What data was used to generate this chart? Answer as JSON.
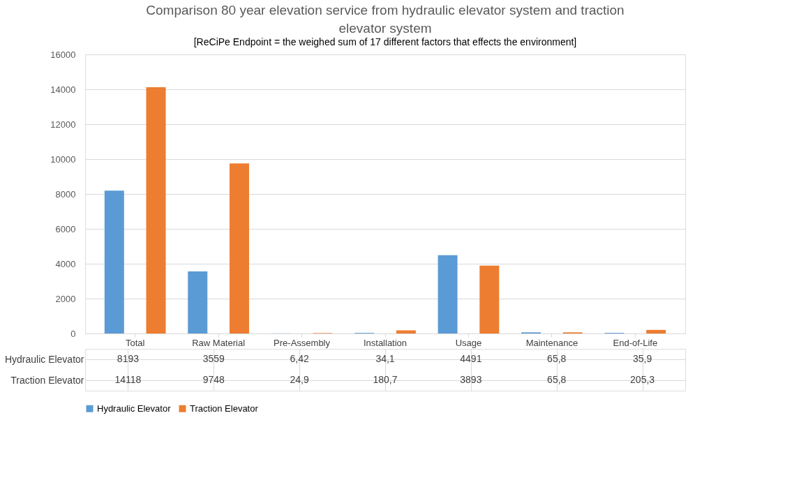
{
  "chart_data": {
    "type": "bar",
    "title": "Comparison 80 year elevation service from hydraulic elevator system and traction elevator system",
    "subtitle": "[ReCiPe Endpoint = the weighed sum of 17 different factors that effects the environment]",
    "categories": [
      "Total",
      "Raw Material",
      "Pre-Assembly",
      "Installation",
      "Usage",
      "Maintenance",
      "End-of-Life"
    ],
    "series": [
      {
        "name": "Hydraulic Elevator",
        "color": "#5b9bd5",
        "values": [
          8193,
          3559,
          6.42,
          34.1,
          4491,
          65.8,
          35.9
        ],
        "value_labels": [
          "8193",
          "3559",
          "6,42",
          "34,1",
          "4491",
          "65,8",
          "35,9"
        ]
      },
      {
        "name": "Traction Elevator",
        "color": "#ed7d31",
        "values": [
          14118,
          9748,
          24.9,
          180.7,
          3893,
          65.8,
          205.3
        ],
        "value_labels": [
          "14118",
          "9748",
          "24,9",
          "180,7",
          "3893",
          "65,8",
          "205,3"
        ]
      }
    ],
    "ylim": [
      0,
      16000
    ],
    "yticks": [
      0,
      2000,
      4000,
      6000,
      8000,
      10000,
      12000,
      14000,
      16000
    ],
    "grid": "y",
    "legend": "bottom"
  }
}
